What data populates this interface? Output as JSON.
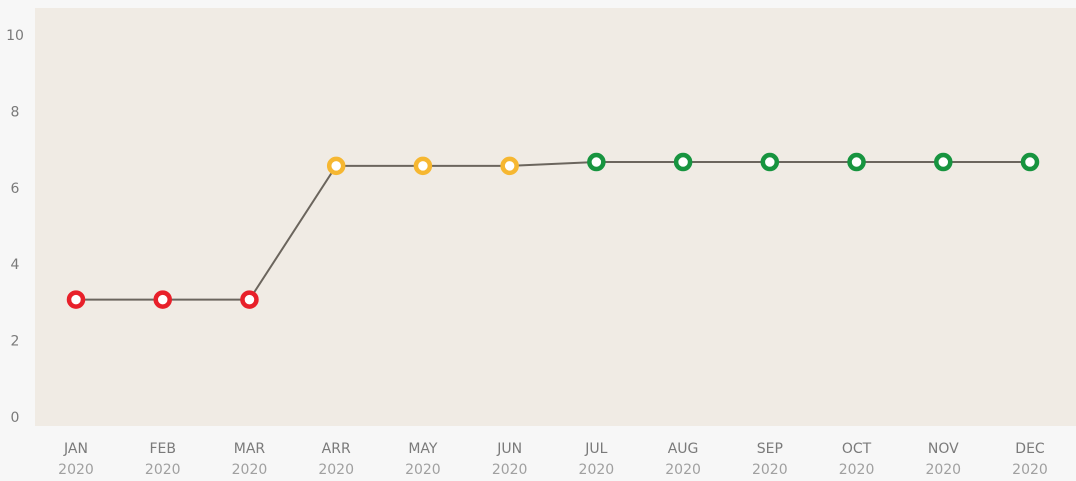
{
  "chart_data": {
    "type": "line",
    "categories": [
      [
        "JAN",
        "2020"
      ],
      [
        "FEB",
        "2020"
      ],
      [
        "MAR",
        "2020"
      ],
      [
        "ARR",
        "2020"
      ],
      [
        "MAY",
        "2020"
      ],
      [
        "JUN",
        "2020"
      ],
      [
        "JUL",
        "2020"
      ],
      [
        "AUG",
        "2020"
      ],
      [
        "SEP",
        "2020"
      ],
      [
        "OCT",
        "2020"
      ],
      [
        "NOV",
        "2020"
      ],
      [
        "DEC",
        "2020"
      ]
    ],
    "series": [
      {
        "color": "#6b655d",
        "values": [
          3.1,
          3.1,
          3.1,
          6.6,
          6.6,
          6.6,
          6.7,
          6.7,
          6.7,
          6.7,
          6.7,
          6.7
        ],
        "point_colors": [
          "#e8202a",
          "#e8202a",
          "#e8202a",
          "#f6b731",
          "#f6b731",
          "#f6b731",
          "#17943f",
          "#17943f",
          "#17943f",
          "#17943f",
          "#17943f",
          "#17943f"
        ]
      }
    ],
    "ylim": [
      0,
      10
    ],
    "yticks": [
      0,
      2,
      4,
      6,
      8,
      10
    ],
    "grid": false
  }
}
